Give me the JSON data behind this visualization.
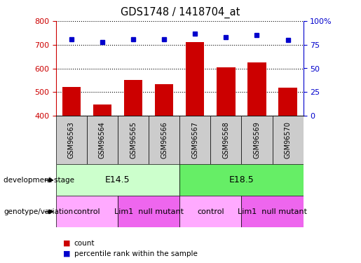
{
  "title": "GDS1748 / 1418704_at",
  "samples": [
    "GSM96563",
    "GSM96564",
    "GSM96565",
    "GSM96566",
    "GSM96567",
    "GSM96568",
    "GSM96569",
    "GSM96570"
  ],
  "counts": [
    520,
    448,
    550,
    533,
    710,
    605,
    625,
    518
  ],
  "percentiles": [
    81,
    78,
    81,
    81,
    87,
    83,
    85,
    80
  ],
  "ylim_left": [
    400,
    800
  ],
  "ylim_right": [
    0,
    100
  ],
  "yticks_left": [
    400,
    500,
    600,
    700,
    800
  ],
  "yticks_right": [
    0,
    25,
    50,
    75,
    100
  ],
  "ytick_right_labels": [
    "0",
    "25",
    "50",
    "75",
    "100%"
  ],
  "bar_color": "#cc0000",
  "dot_color": "#0000cc",
  "development_stages": [
    {
      "label": "E14.5",
      "start": 0,
      "end": 3,
      "color": "#ccffcc"
    },
    {
      "label": "E18.5",
      "start": 4,
      "end": 7,
      "color": "#66ee66"
    }
  ],
  "genotype_groups": [
    {
      "label": "control",
      "start": 0,
      "end": 1,
      "color": "#ffaaff"
    },
    {
      "label": "Lim1  null mutant",
      "start": 2,
      "end": 3,
      "color": "#ee66ee"
    },
    {
      "label": "control",
      "start": 4,
      "end": 5,
      "color": "#ffaaff"
    },
    {
      "label": "Lim1  null mutant",
      "start": 6,
      "end": 7,
      "color": "#ee66ee"
    }
  ],
  "left_tick_color": "#cc0000",
  "right_tick_color": "#0000cc",
  "sample_box_color": "#cccccc",
  "bg_color": "#ffffff"
}
